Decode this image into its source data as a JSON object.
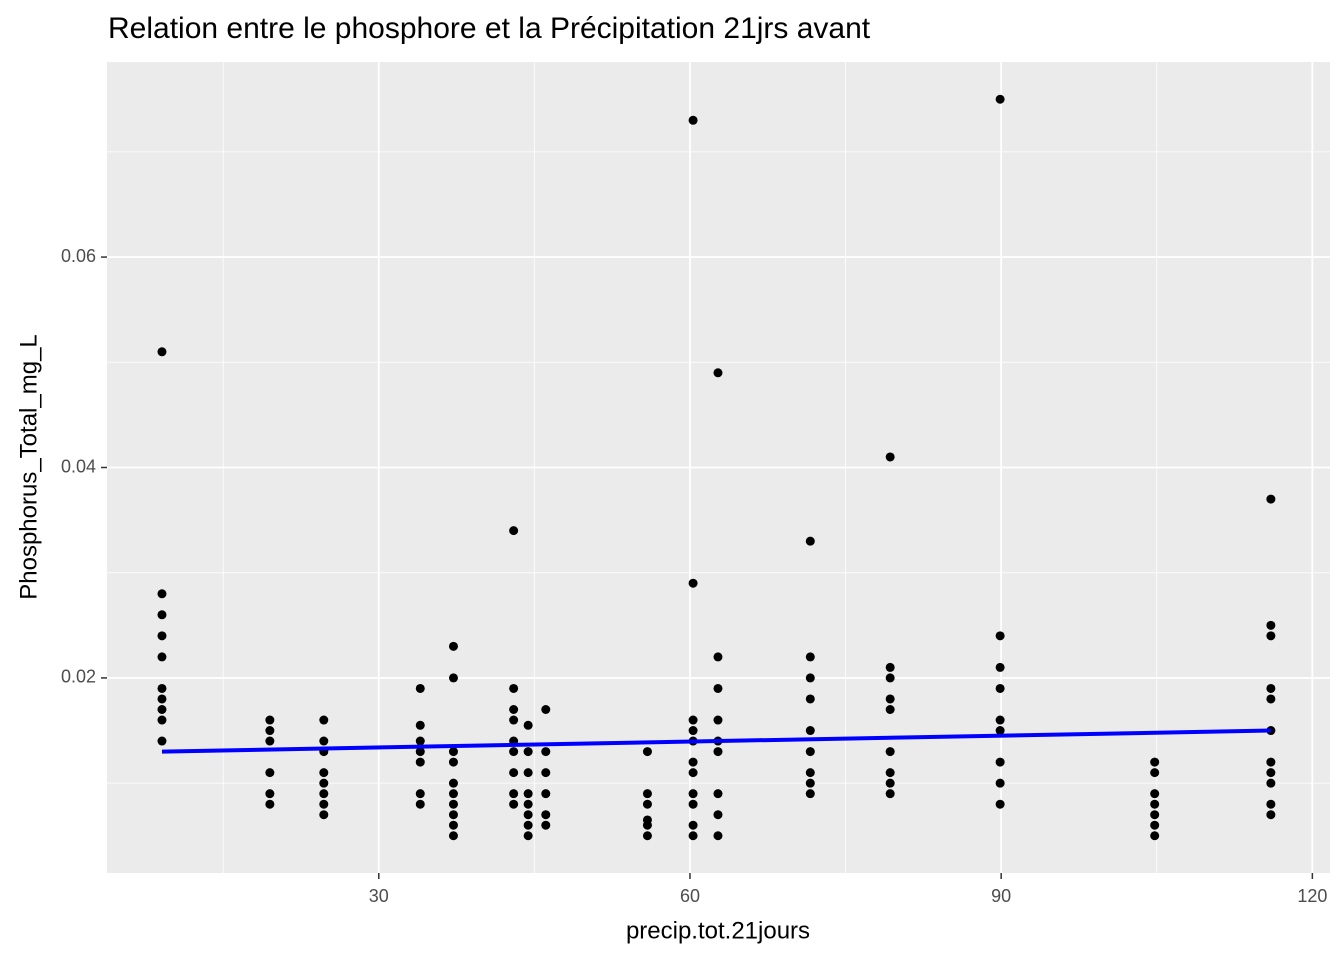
{
  "chart_data": {
    "type": "scatter",
    "title": "Relation entre le phosphore et la Précipitation 21jrs avant",
    "x_label": "precip.tot.21jours",
    "y_label": "Phosphorus_Total_mg_L",
    "x": [
      9.1,
      9.1,
      9.1,
      9.1,
      9.1,
      9.1,
      9.1,
      9.1,
      9.1,
      9.1,
      19.5,
      19.5,
      19.5,
      19.5,
      19.5,
      19.5,
      24.7,
      24.7,
      24.7,
      24.7,
      24.7,
      24.7,
      24.7,
      24.7,
      34,
      34,
      34,
      34,
      34,
      34,
      34,
      37.2,
      37.2,
      37.2,
      37.2,
      37.2,
      37.2,
      37.2,
      37.2,
      37.2,
      37.2,
      43,
      43,
      43,
      43,
      43,
      43,
      43,
      43,
      43,
      44.4,
      44.4,
      44.4,
      44.4,
      44.4,
      44.4,
      44.4,
      44.4,
      46.1,
      46.1,
      46.1,
      46.1,
      46.1,
      46.1,
      55.9,
      55.9,
      55.9,
      55.9,
      55.9,
      55.9,
      60.3,
      60.3,
      60.3,
      60.3,
      60.3,
      60.3,
      60.3,
      60.3,
      60.3,
      60.3,
      60.3,
      62.7,
      62.7,
      62.7,
      62.7,
      62.7,
      62.7,
      62.7,
      62.7,
      62.7,
      71.6,
      71.6,
      71.6,
      71.6,
      71.6,
      71.6,
      71.6,
      71.6,
      71.6,
      79.3,
      79.3,
      79.3,
      79.3,
      79.3,
      79.3,
      79.3,
      79.3,
      79.3,
      89.9,
      89.9,
      89.9,
      89.9,
      89.9,
      89.9,
      89.9,
      89.9,
      89.9,
      104.8,
      104.8,
      104.8,
      104.8,
      104.8,
      104.8,
      104.8,
      116,
      116,
      116,
      116,
      116,
      116,
      116,
      116,
      116,
      116,
      116
    ],
    "y": [
      0.051,
      0.028,
      0.026,
      0.024,
      0.022,
      0.019,
      0.018,
      0.017,
      0.016,
      0.014,
      0.016,
      0.015,
      0.014,
      0.011,
      0.009,
      0.008,
      0.016,
      0.014,
      0.013,
      0.011,
      0.01,
      0.009,
      0.008,
      0.007,
      0.019,
      0.0155,
      0.014,
      0.013,
      0.012,
      0.009,
      0.008,
      0.023,
      0.02,
      0.013,
      0.012,
      0.01,
      0.009,
      0.008,
      0.007,
      0.006,
      0.005,
      0.034,
      0.019,
      0.017,
      0.016,
      0.014,
      0.013,
      0.011,
      0.009,
      0.008,
      0.0155,
      0.013,
      0.011,
      0.009,
      0.008,
      0.007,
      0.006,
      0.005,
      0.017,
      0.013,
      0.011,
      0.009,
      0.007,
      0.006,
      0.013,
      0.009,
      0.008,
      0.0065,
      0.006,
      0.005,
      0.073,
      0.029,
      0.016,
      0.015,
      0.014,
      0.012,
      0.011,
      0.009,
      0.008,
      0.006,
      0.005,
      0.049,
      0.022,
      0.019,
      0.016,
      0.014,
      0.013,
      0.009,
      0.007,
      0.005,
      0.033,
      0.022,
      0.02,
      0.018,
      0.015,
      0.013,
      0.011,
      0.01,
      0.009,
      0.041,
      0.021,
      0.02,
      0.018,
      0.017,
      0.013,
      0.011,
      0.01,
      0.009,
      0.075,
      0.024,
      0.021,
      0.019,
      0.016,
      0.015,
      0.012,
      0.01,
      0.008,
      0.012,
      0.011,
      0.009,
      0.008,
      0.007,
      0.006,
      0.005,
      0.037,
      0.025,
      0.024,
      0.019,
      0.018,
      0.015,
      0.012,
      0.011,
      0.01,
      0.008,
      0.007
    ],
    "color": "#000000",
    "fit_line": {
      "x": [
        9.1,
        116
      ],
      "y": [
        0.013,
        0.015
      ],
      "color": "#0000ff"
    },
    "xlim": [
      3.8,
      121.7
    ],
    "ylim": [
      0.00146,
      0.07854
    ],
    "xticks": [
      30,
      60,
      90,
      120
    ],
    "yticks": [
      0.02,
      0.04,
      0.06
    ],
    "x_minor": [
      15,
      45,
      75,
      105
    ],
    "y_minor": [
      0.01,
      0.03,
      0.05,
      0.07
    ],
    "grid": true
  }
}
